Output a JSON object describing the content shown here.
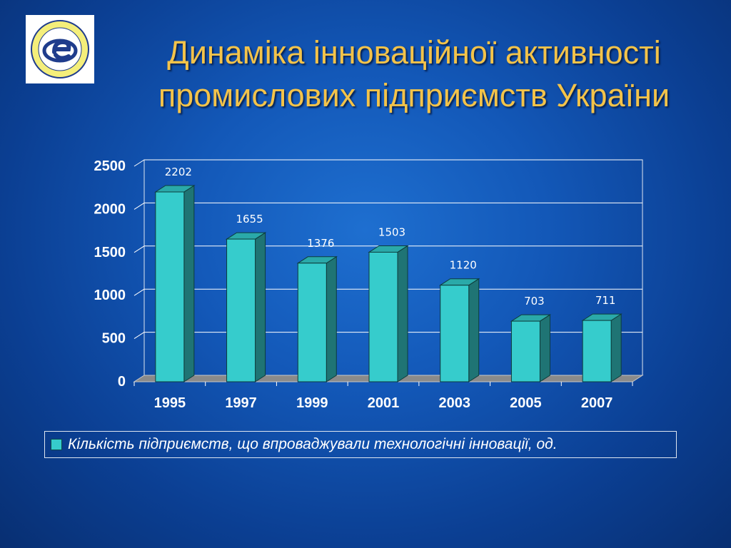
{
  "slide": {
    "title_line1": "Динаміка інноваційної активності",
    "title_line2": "промислових підприємств України"
  },
  "colors": {
    "bar_front": "#36cccc",
    "bar_top": "#2aa9a9",
    "bar_side": "#1f7474",
    "title": "#f3c34a",
    "grid": "#ffffff",
    "floor": "#8a8a8a"
  },
  "chart_data": {
    "type": "bar",
    "categories": [
      "1995",
      "1997",
      "1999",
      "2001",
      "2003",
      "2005",
      "2007"
    ],
    "series": [
      {
        "name": "Кількість підприємств, що впроваджували технологічні інновації, од.",
        "values": [
          2202,
          1655,
          1376,
          1503,
          1120,
          703,
          711
        ]
      }
    ],
    "data_labels": [
      "2202",
      "1655",
      "1376",
      "1503",
      "1120",
      "703",
      "711"
    ],
    "ylim": [
      0,
      2500
    ],
    "yticks": [
      0,
      500,
      1000,
      1500,
      2000,
      2500
    ],
    "grid": true,
    "legend_position": "bottom",
    "style": "3d-column"
  }
}
